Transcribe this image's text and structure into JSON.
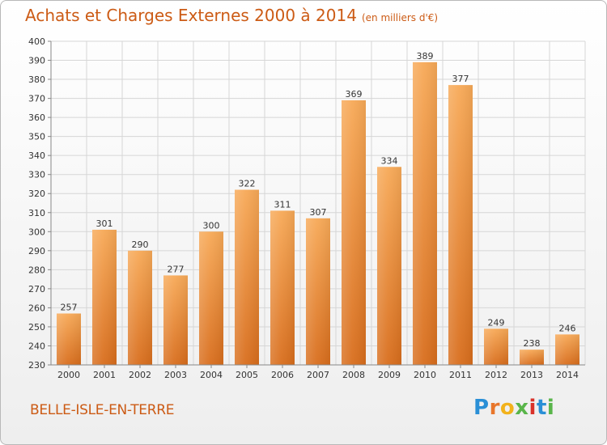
{
  "title": "Achats et Charges Externes 2000 à 2014",
  "unit_note": "(en milliers d'€)",
  "location": "BELLE-ISLE-EN-TERRE",
  "logo": {
    "letters": [
      "P",
      "r",
      "o",
      "x",
      "i",
      "t",
      "i"
    ],
    "colors": [
      "#2a8fd6",
      "#e8762b",
      "#f2b21b",
      "#59b54a",
      "#d9322a",
      "#2a8fd6",
      "#59b54a"
    ]
  },
  "colors": {
    "accent": "#cc5b15",
    "bar_light": "#f7a957",
    "bar_dark": "#d86d1c",
    "grid": "#d6d6d6"
  },
  "chart_data": {
    "type": "bar",
    "categories": [
      "2000",
      "2001",
      "2002",
      "2003",
      "2004",
      "2005",
      "2006",
      "2007",
      "2008",
      "2009",
      "2010",
      "2011",
      "2012",
      "2013",
      "2014"
    ],
    "values": [
      257,
      301,
      290,
      277,
      300,
      322,
      311,
      307,
      369,
      334,
      389,
      377,
      249,
      238,
      246
    ],
    "ylim": [
      230,
      400
    ],
    "yticks": [
      230,
      240,
      250,
      260,
      270,
      280,
      290,
      300,
      310,
      320,
      330,
      340,
      350,
      360,
      370,
      380,
      390,
      400
    ],
    "grid": true,
    "legend": "none"
  }
}
